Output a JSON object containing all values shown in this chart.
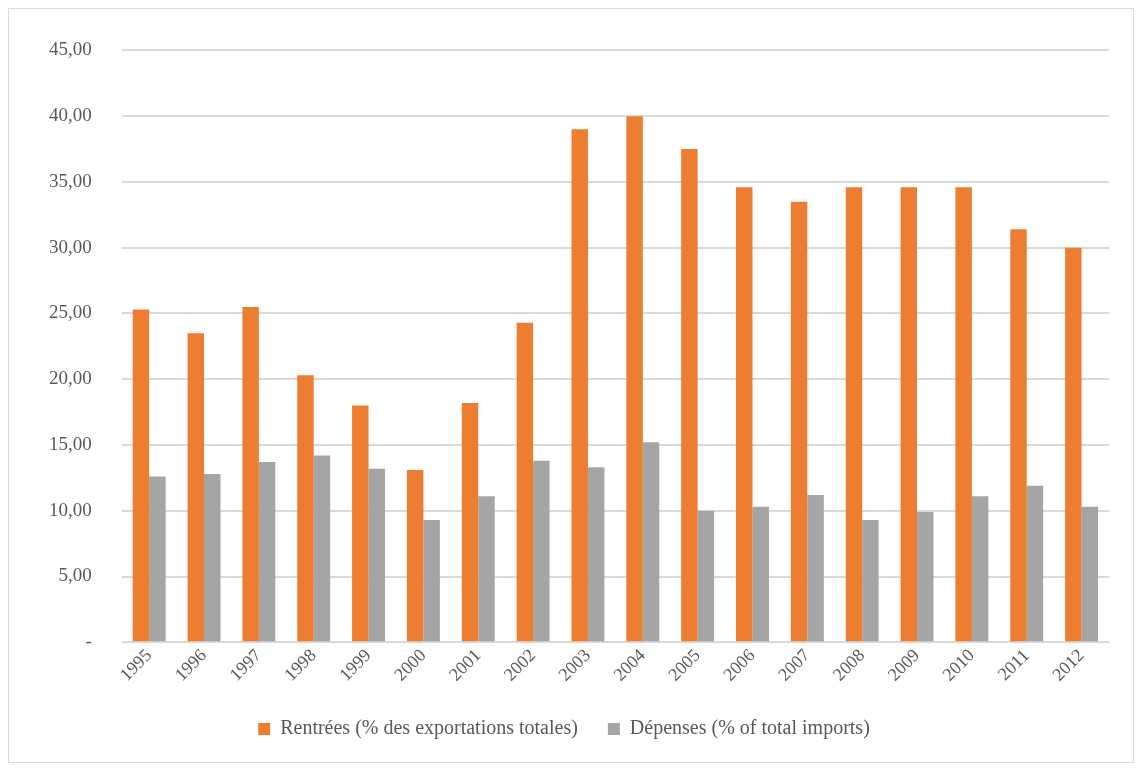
{
  "chart_data": {
    "type": "bar",
    "categories": [
      "1995",
      "1996",
      "1997",
      "1998",
      "1999",
      "2000",
      "2001",
      "2002",
      "2003",
      "2004",
      "2005",
      "2006",
      "2007",
      "2008",
      "2009",
      "2010",
      "2011",
      "2012"
    ],
    "series": [
      {
        "name": "Rentrées (% des exportations totales)",
        "color": "#ed7d31",
        "values": [
          25.3,
          23.5,
          25.5,
          20.3,
          18.0,
          13.1,
          18.2,
          24.3,
          39.0,
          40.0,
          37.5,
          34.6,
          33.5,
          34.6,
          34.6,
          34.6,
          31.4,
          30.0
        ]
      },
      {
        "name": "Dépenses (% of total imports)",
        "color": "#a5a5a5",
        "values": [
          12.6,
          12.8,
          13.7,
          14.2,
          13.2,
          9.3,
          11.1,
          13.8,
          13.3,
          15.2,
          10.0,
          10.3,
          11.2,
          9.3,
          9.9,
          11.1,
          11.9,
          10.3
        ]
      }
    ],
    "ylim": [
      0,
      45
    ],
    "yticks": [
      {
        "value": 0,
        "label": "-"
      },
      {
        "value": 5,
        "label": "5,00"
      },
      {
        "value": 10,
        "label": "10,00"
      },
      {
        "value": 15,
        "label": "15,00"
      },
      {
        "value": 20,
        "label": "20,00"
      },
      {
        "value": 25,
        "label": "25,00"
      },
      {
        "value": 30,
        "label": "30,00"
      },
      {
        "value": 35,
        "label": "35,00"
      },
      {
        "value": 40,
        "label": "40,00"
      },
      {
        "value": 45,
        "label": "45,00"
      }
    ],
    "grid": "y",
    "legend": "bottom"
  }
}
